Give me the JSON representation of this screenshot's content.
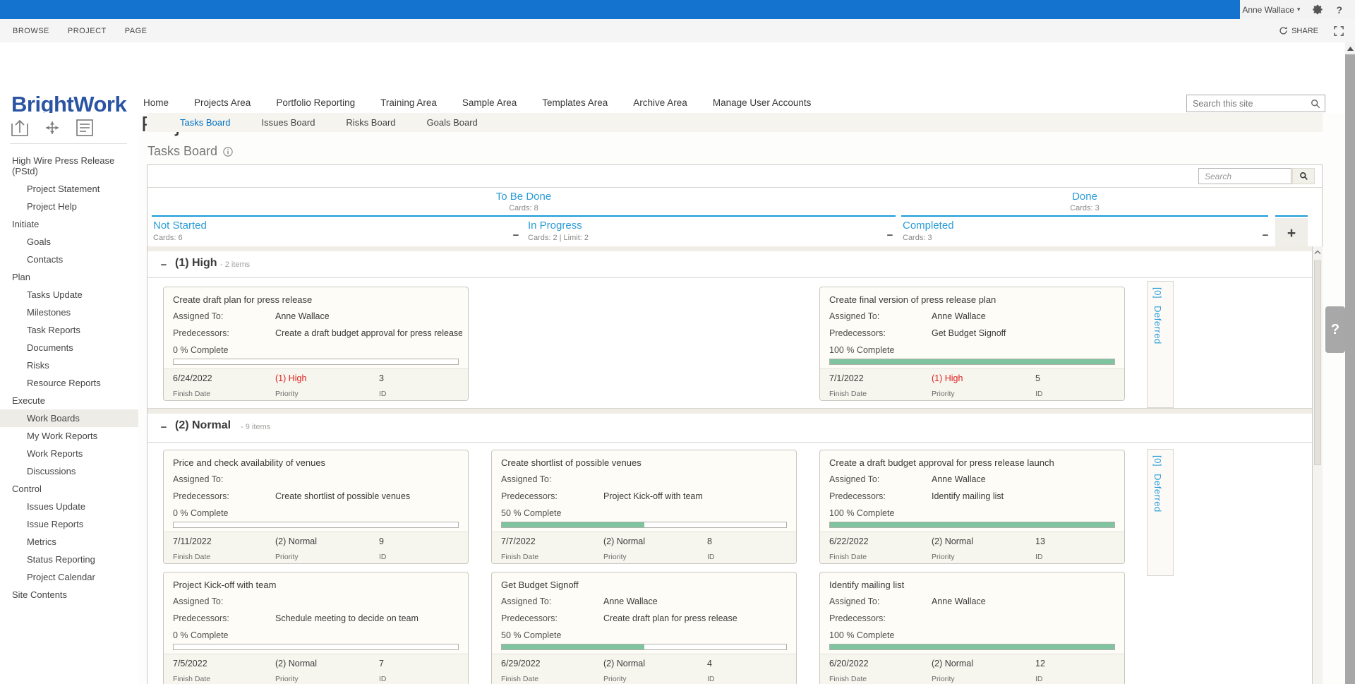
{
  "suite_bar": {
    "user": "Anne Wallace",
    "help": "?"
  },
  "ribbon": {
    "tabs": [
      "BROWSE",
      "PROJECT",
      "PAGE"
    ],
    "share_label": "SHARE"
  },
  "header": {
    "logo": "BrightWork",
    "nav": [
      "Home",
      "Projects Area",
      "Portfolio Reporting",
      "Training Area",
      "Sample Area",
      "Templates Area",
      "Archive Area",
      "Manage User Accounts"
    ],
    "title": "Project Tasks - Board",
    "site_search_placeholder": "Search this site"
  },
  "view_tabs": [
    {
      "label": "Tasks Board",
      "active": true
    },
    {
      "label": "Issues Board",
      "active": false
    },
    {
      "label": "Risks Board",
      "active": false
    },
    {
      "label": "Goals Board",
      "active": false
    }
  ],
  "page_heading": "Tasks Board",
  "sidebar": {
    "items": [
      {
        "label": "High Wire Press Release (PStd)",
        "indent": 0,
        "active": false
      },
      {
        "label": "Project Statement",
        "indent": 1,
        "active": false
      },
      {
        "label": "Project Help",
        "indent": 1,
        "active": false
      },
      {
        "label": "Initiate",
        "indent": 0,
        "active": false
      },
      {
        "label": "Goals",
        "indent": 1,
        "active": false
      },
      {
        "label": "Contacts",
        "indent": 1,
        "active": false
      },
      {
        "label": "Plan",
        "indent": 0,
        "active": false
      },
      {
        "label": "Tasks Update",
        "indent": 1,
        "active": false
      },
      {
        "label": "Milestones",
        "indent": 1,
        "active": false
      },
      {
        "label": "Task Reports",
        "indent": 1,
        "active": false
      },
      {
        "label": "Documents",
        "indent": 1,
        "active": false
      },
      {
        "label": "Risks",
        "indent": 1,
        "active": false
      },
      {
        "label": "Resource Reports",
        "indent": 1,
        "active": false
      },
      {
        "label": "Execute",
        "indent": 0,
        "active": false
      },
      {
        "label": "Work Boards",
        "indent": 1,
        "active": true
      },
      {
        "label": "My Work Reports",
        "indent": 1,
        "active": false
      },
      {
        "label": "Work Reports",
        "indent": 1,
        "active": false
      },
      {
        "label": "Discussions",
        "indent": 1,
        "active": false
      },
      {
        "label": "Control",
        "indent": 0,
        "active": false
      },
      {
        "label": "Issues Update",
        "indent": 1,
        "active": false
      },
      {
        "label": "Issue Reports",
        "indent": 1,
        "active": false
      },
      {
        "label": "Metrics",
        "indent": 1,
        "active": false
      },
      {
        "label": "Status Reporting",
        "indent": 1,
        "active": false
      },
      {
        "label": "Project Calendar",
        "indent": 1,
        "active": false
      },
      {
        "label": "Site Contents",
        "indent": 0,
        "active": false
      }
    ]
  },
  "board": {
    "toolbar_search_placeholder": "Search",
    "groups": [
      {
        "label": "To Be Done",
        "cards": "Cards: 8"
      },
      {
        "label": "Done",
        "cards": "Cards: 3"
      }
    ],
    "columns": [
      {
        "label": "Not Started",
        "cards": "Cards: 6"
      },
      {
        "label": "In Progress",
        "cards": "Cards: 2 | Limit: 2"
      },
      {
        "label": "Completed",
        "cards": "Cards: 3"
      }
    ],
    "add_column_label": "+",
    "collapse_glyph": "−",
    "card_labels": {
      "assigned": "Assigned To:",
      "predecessors": "Predecessors:",
      "finish_date": "Finish Date",
      "priority": "Priority",
      "id": "ID"
    },
    "lanes": [
      {
        "title": "(1) High",
        "count_label": "- 2 items",
        "deferred_count": "[0]",
        "deferred_label": "Deferred",
        "cards": [
          {
            "column": "not-started",
            "row": 0,
            "title": "Create draft plan for press release",
            "assigned": "Anne Wallace",
            "predecessors": "Create a draft budget approval for press release launch",
            "pct_label": "0 % Complete",
            "pct": 0,
            "finish_date": "6/24/2022",
            "priority": "(1) High",
            "id": "3"
          },
          {
            "column": "completed",
            "row": 0,
            "title": "Create final version of press release plan",
            "assigned": "Anne Wallace",
            "predecessors": "Get Budget Signoff",
            "pct_label": "100 % Complete",
            "pct": 100,
            "finish_date": "7/1/2022",
            "priority": "(1) High",
            "id": "5"
          }
        ]
      },
      {
        "title": "(2) Normal",
        "count_label": "- 9 items",
        "deferred_count": "[0]",
        "deferred_label": "Deferred",
        "cards": [
          {
            "column": "not-started",
            "row": 0,
            "title": "Price and check availability of venues",
            "assigned": "",
            "predecessors": "Create shortlist of possible venues",
            "pct_label": "0 % Complete",
            "pct": 0,
            "finish_date": "7/11/2022",
            "priority": "(2) Normal",
            "id": "9"
          },
          {
            "column": "in-progress",
            "row": 0,
            "title": "Create shortlist of possible venues",
            "assigned": "",
            "predecessors": "Project Kick-off with team",
            "pct_label": "50 % Complete",
            "pct": 50,
            "finish_date": "7/7/2022",
            "priority": "(2) Normal",
            "id": "8"
          },
          {
            "column": "completed",
            "row": 0,
            "title": "Create a draft budget approval for press release launch",
            "assigned": "Anne Wallace",
            "predecessors": "Identify mailing list",
            "pct_label": "100 % Complete",
            "pct": 100,
            "finish_date": "6/22/2022",
            "priority": "(2) Normal",
            "id": "13"
          },
          {
            "column": "not-started",
            "row": 1,
            "title": "Project Kick-off with team",
            "assigned": "",
            "predecessors": "Schedule meeting to decide on team",
            "pct_label": "0 % Complete",
            "pct": 0,
            "finish_date": "7/5/2022",
            "priority": "(2) Normal",
            "id": "7"
          },
          {
            "column": "in-progress",
            "row": 1,
            "title": "Get Budget Signoff",
            "assigned": "Anne Wallace",
            "predecessors": "Create draft plan for press release",
            "pct_label": "50 % Complete",
            "pct": 50,
            "finish_date": "6/29/2022",
            "priority": "(2) Normal",
            "id": "4"
          },
          {
            "column": "completed",
            "row": 1,
            "title": "Identify mailing list",
            "assigned": "Anne Wallace",
            "predecessors": "",
            "pct_label": "100 % Complete",
            "pct": 100,
            "finish_date": "6/20/2022",
            "priority": "(2) Normal",
            "id": "12"
          }
        ]
      }
    ]
  },
  "help_tab": "?"
}
